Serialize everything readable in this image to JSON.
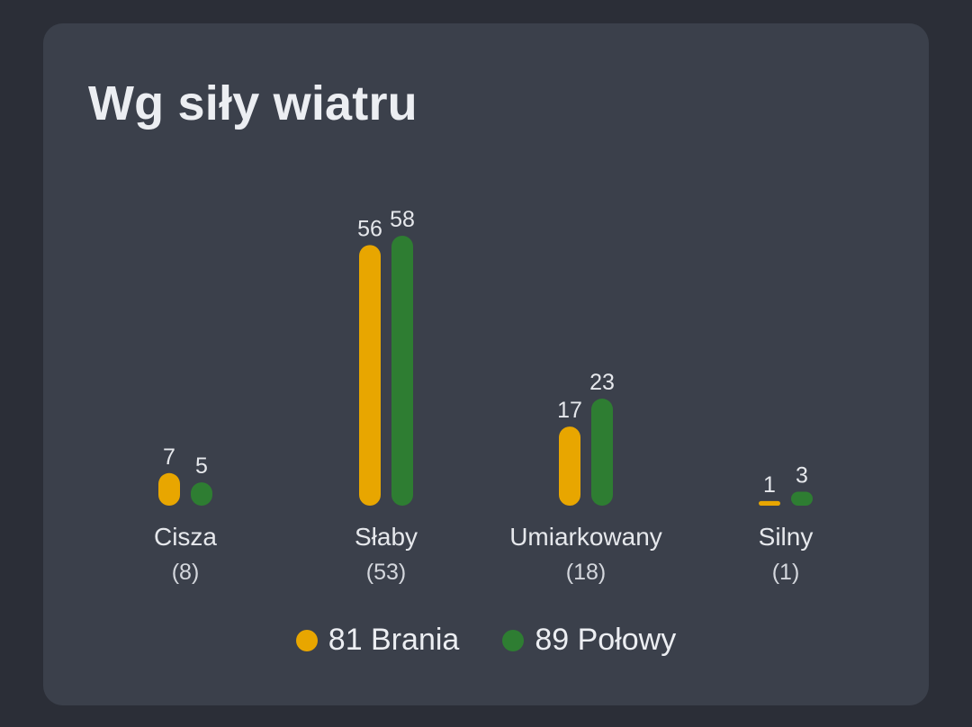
{
  "card": {
    "title": "Wg siły wiatru"
  },
  "colors": {
    "brania": "#e8a600",
    "polowy": "#2e7d32",
    "background": "#2b2e37",
    "card": "#3b404b"
  },
  "chart_data": {
    "type": "bar",
    "title": "Wg siły wiatru",
    "categories": [
      "Cisza",
      "Słaby",
      "Umiarkowany",
      "Silny"
    ],
    "category_counts": [
      "(8)",
      "(53)",
      "(18)",
      "(1)"
    ],
    "series": [
      {
        "name": "81 Brania",
        "values": [
          7,
          56,
          17,
          1
        ]
      },
      {
        "name": "89 Połowy",
        "values": [
          5,
          58,
          23,
          3
        ]
      }
    ],
    "ylim": [
      0,
      58
    ],
    "grid": false,
    "legend": "bottom-center"
  },
  "legend": {
    "items": [
      {
        "label": "81 Brania",
        "icon": "yellow-dot"
      },
      {
        "label": "89 Połowy",
        "icon": "green-dot"
      }
    ]
  }
}
